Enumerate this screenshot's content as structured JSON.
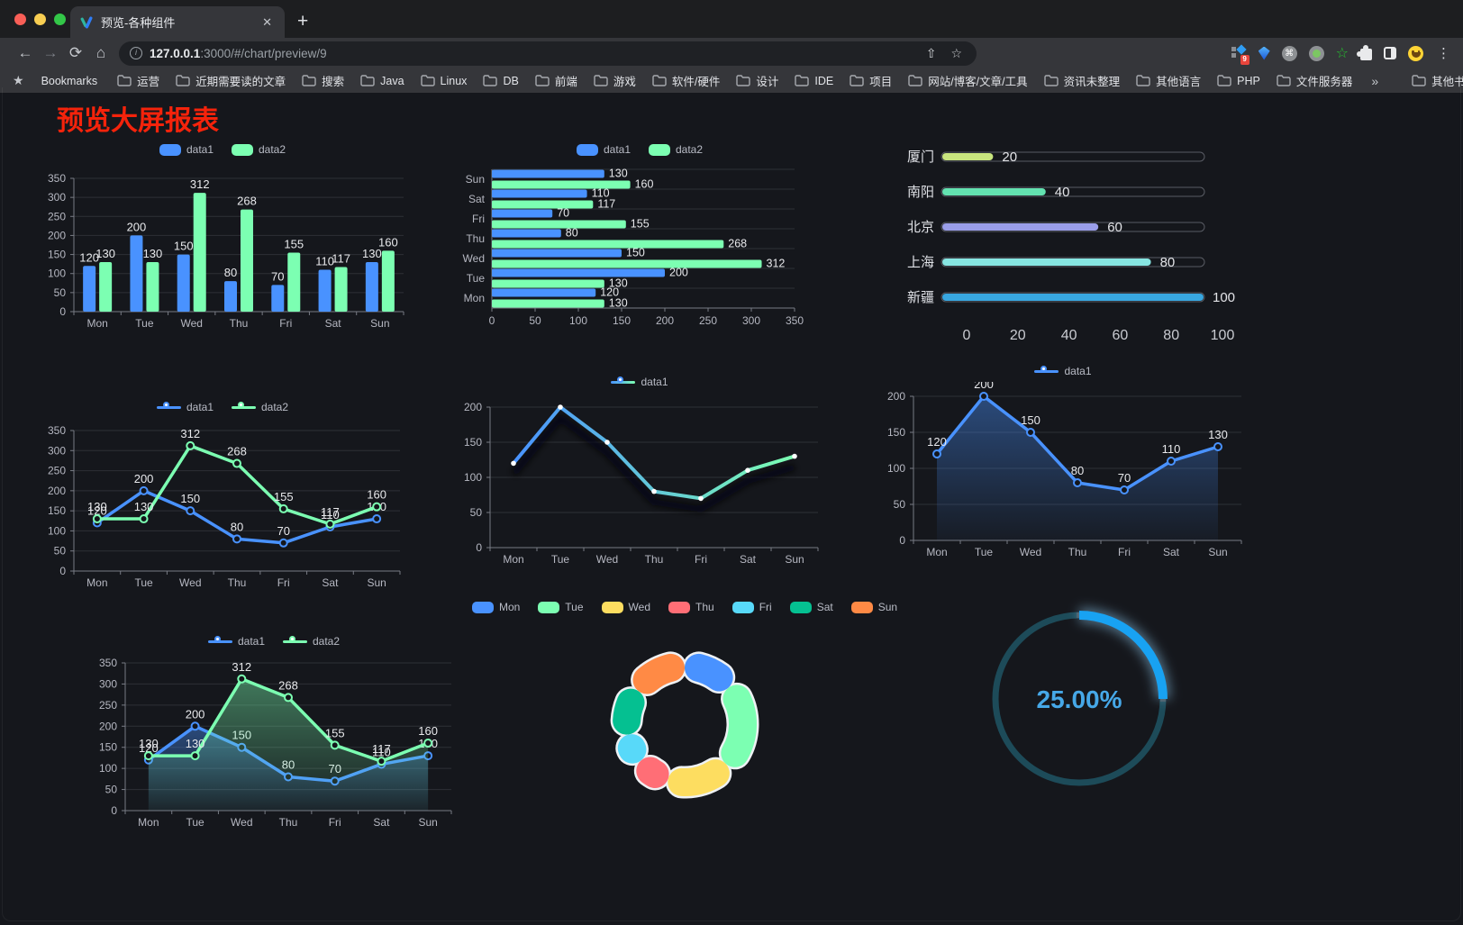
{
  "browser": {
    "tab_title": "预览-各种组件",
    "close_glyph": "✕",
    "newtab_glyph": "+",
    "back_glyph": "←",
    "forward_glyph": "→",
    "reload_glyph": "⟳",
    "home_glyph": "⌂",
    "url_host": "127.0.0.1",
    "url_rest": ":3000/#/chart/preview/9",
    "share_glyph": "⇧",
    "star_glyph": "☆",
    "extension_badge": "9",
    "menu_glyph": "⋮",
    "bookmarks_label": "Bookmarks",
    "bookmarks": [
      "运营",
      "近期需要读的文章",
      "搜索",
      "Java",
      "Linux",
      "DB",
      "前端",
      "游戏",
      "软件/硬件",
      "设计",
      "IDE",
      "项目",
      "网站/博客/文章/工具",
      "资讯未整理",
      "其他语言",
      "PHP",
      "文件服务器"
    ],
    "overflow_glyph": "»",
    "other_bookmarks_label": "其他书签"
  },
  "page": {
    "title": "预览大屏报表",
    "title_color": "#f5230b",
    "background": "#15171c"
  },
  "chart_data": [
    {
      "id": "bar-vertical",
      "type": "bar",
      "categories": [
        "Mon",
        "Tue",
        "Wed",
        "Thu",
        "Fri",
        "Sat",
        "Sun"
      ],
      "series": [
        {
          "name": "data1",
          "color": "#4992ff",
          "values": [
            120,
            200,
            150,
            80,
            70,
            110,
            130
          ]
        },
        {
          "name": "data2",
          "color": "#7cffb2",
          "values": [
            130,
            130,
            312,
            268,
            155,
            117,
            160
          ]
        }
      ],
      "ylim": [
        0,
        350
      ],
      "yticks": [
        0,
        50,
        100,
        150,
        200,
        250,
        300,
        350
      ],
      "value_labels": true,
      "legend_position": "top"
    },
    {
      "id": "bar-horizontal",
      "type": "bar",
      "orientation": "horizontal",
      "categories_top_to_bottom": [
        "Sun",
        "Sat",
        "Fri",
        "Thu",
        "Wed",
        "Tue",
        "Mon"
      ],
      "series": [
        {
          "name": "data1",
          "color": "#4992ff",
          "values_top_to_bottom": [
            130,
            110,
            70,
            80,
            150,
            200,
            120
          ]
        },
        {
          "name": "data2",
          "color": "#7cffb2",
          "values_top_to_bottom": [
            160,
            117,
            155,
            268,
            312,
            130,
            130
          ]
        }
      ],
      "xlim": [
        0,
        350
      ],
      "xticks": [
        0,
        50,
        100,
        150,
        200,
        250,
        300,
        350
      ],
      "value_labels": true,
      "legend_position": "top"
    },
    {
      "id": "progress-list",
      "type": "bar",
      "style": "rounded-progress",
      "rows": [
        {
          "label": "厦门",
          "value": 20,
          "color": "#c8e57e"
        },
        {
          "label": "南阳",
          "value": 40,
          "color": "#63e2b0"
        },
        {
          "label": "北京",
          "value": 60,
          "color": "#9a9ee9"
        },
        {
          "label": "上海",
          "value": 80,
          "color": "#87e6e2"
        },
        {
          "label": "新疆",
          "value": 100,
          "color": "#38a7e0"
        }
      ],
      "xlim": [
        0,
        100
      ],
      "xticks": [
        0,
        20,
        40,
        60,
        80,
        100
      ]
    },
    {
      "id": "line-two",
      "type": "line",
      "categories": [
        "Mon",
        "Tue",
        "Wed",
        "Thu",
        "Fri",
        "Sat",
        "Sun"
      ],
      "series": [
        {
          "name": "data1",
          "color": "#4992ff",
          "values": [
            120,
            200,
            150,
            80,
            70,
            110,
            130
          ]
        },
        {
          "name": "data2",
          "color": "#7cffb2",
          "values": [
            130,
            130,
            312,
            268,
            155,
            117,
            160
          ]
        }
      ],
      "ylim": [
        0,
        350
      ],
      "yticks": [
        0,
        50,
        100,
        150,
        200,
        250,
        300,
        350
      ],
      "value_labels": true,
      "legend_position": "top"
    },
    {
      "id": "line-gradient",
      "type": "line",
      "categories": [
        "Mon",
        "Tue",
        "Wed",
        "Thu",
        "Fri",
        "Sat",
        "Sun"
      ],
      "series": [
        {
          "name": "data1",
          "gradient": [
            "#4992ff",
            "#7cffb2"
          ],
          "values": [
            120,
            200,
            150,
            80,
            70,
            110,
            130
          ]
        }
      ],
      "ylim": [
        0,
        200
      ],
      "yticks": [
        0,
        50,
        100,
        150,
        200
      ],
      "value_labels": false,
      "legend_position": "top"
    },
    {
      "id": "line-area",
      "type": "area",
      "categories": [
        "Mon",
        "Tue",
        "Wed",
        "Thu",
        "Fri",
        "Sat",
        "Sun"
      ],
      "series": [
        {
          "name": "data1",
          "color": "#4992ff",
          "area": true,
          "values": [
            120,
            200,
            150,
            80,
            70,
            110,
            130
          ]
        }
      ],
      "ylim": [
        0,
        200
      ],
      "yticks": [
        0,
        50,
        100,
        150,
        200
      ],
      "value_labels": true,
      "legend_position": "top"
    },
    {
      "id": "line-area-two",
      "type": "area",
      "categories": [
        "Mon",
        "Tue",
        "Wed",
        "Thu",
        "Fri",
        "Sat",
        "Sun"
      ],
      "series": [
        {
          "name": "data1",
          "color": "#4992ff",
          "area": true,
          "values": [
            120,
            200,
            150,
            80,
            70,
            110,
            130
          ]
        },
        {
          "name": "data2",
          "color": "#7cffb2",
          "area": true,
          "values": [
            130,
            130,
            312,
            268,
            155,
            117,
            160
          ]
        }
      ],
      "ylim": [
        0,
        350
      ],
      "yticks": [
        0,
        50,
        100,
        150,
        200,
        250,
        300,
        350
      ],
      "value_labels": true,
      "legend_position": "top"
    },
    {
      "id": "donut",
      "type": "pie",
      "legend": [
        "Mon",
        "Tue",
        "Wed",
        "Thu",
        "Fri",
        "Sat",
        "Sun"
      ],
      "values": [
        120,
        200,
        150,
        80,
        70,
        110,
        130
      ],
      "colors": [
        "#4992ff",
        "#7cffb2",
        "#fddd60",
        "#ff6e76",
        "#58d9f9",
        "#05c091",
        "#ff8a45"
      ],
      "inner_radius_ratio": 0.57,
      "border_color": "#eef1f4",
      "legend_position": "top"
    },
    {
      "id": "gauge",
      "type": "gauge",
      "value_text": "25.00%",
      "percent": 25,
      "arc_color": "#18a2f2",
      "track_color": "#1d4b59",
      "text_color": "#46a8e8"
    }
  ]
}
